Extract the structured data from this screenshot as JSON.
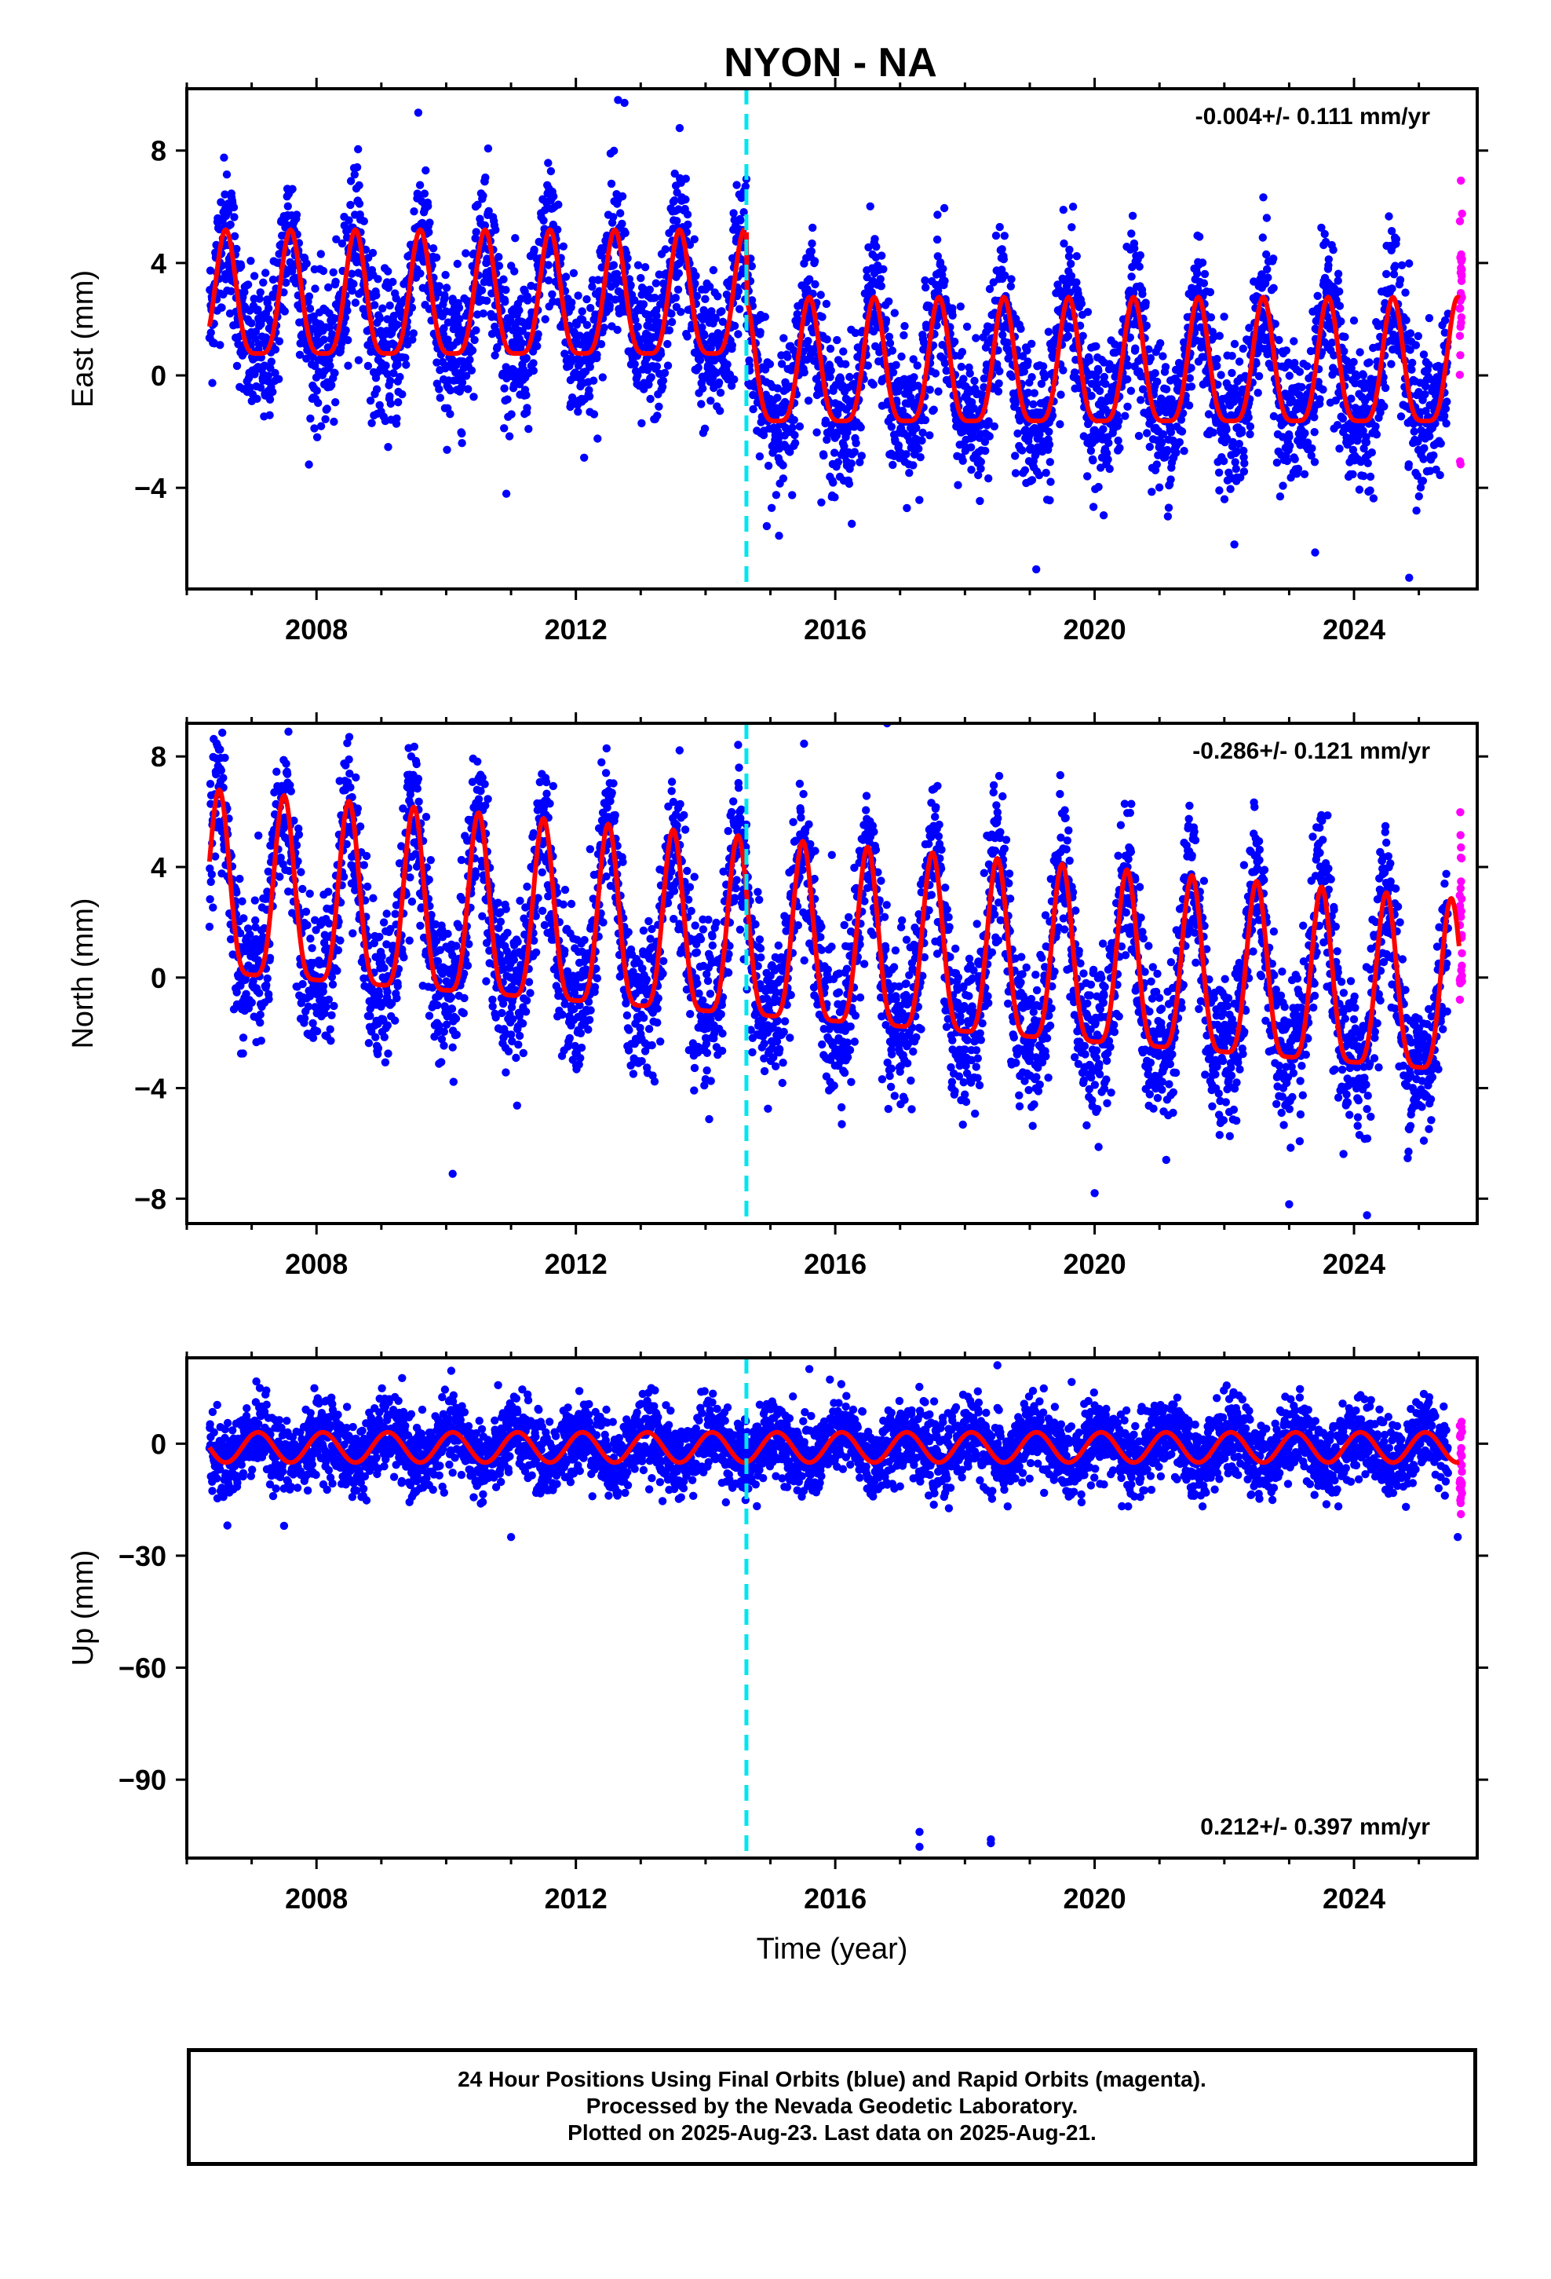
{
  "title": "NYON - NA",
  "colors": {
    "final_orbits": "#0000ff",
    "rapid_orbits": "#ff00ff",
    "model_fit": "#ff0000",
    "offset_line": "#00e5ee",
    "frame": "#000000"
  },
  "chart_data": [
    {
      "type": "scatter",
      "component": "east",
      "ylabel": "East (mm)",
      "xlim": [
        2006.0,
        2025.9
      ],
      "ylim": [
        -7.6,
        10.2
      ],
      "yticks": [
        -4,
        0,
        4,
        8
      ],
      "xticks": [
        2008,
        2012,
        2016,
        2020,
        2024
      ],
      "xtick_labels": [
        "2008",
        "2012",
        "2016",
        "2020",
        "2024"
      ],
      "offset_year": 2014.63,
      "rate_label": "-0.004+/- 0.111 mm/yr",
      "rate_position": "top-right",
      "model": {
        "base_before": 2.1,
        "amp_before": 2.2,
        "base_after": -0.3,
        "amp_after": 2.2,
        "phase_peak": 0.6
      },
      "series": [
        {
          "name": "Final Orbits",
          "color": "#0000ff",
          "x_range": [
            2006.35,
            2025.45
          ],
          "noise": 1.3
        },
        {
          "name": "Rapid Orbits",
          "color": "#ff00ff",
          "x_range": [
            2025.45,
            2025.64
          ],
          "noise": 1.8
        }
      ],
      "outliers": [
        {
          "x": 2012.65,
          "y": 9.8
        },
        {
          "x": 2012.75,
          "y": 9.7
        },
        {
          "x": 2013.6,
          "y": 8.8
        },
        {
          "x": 2023.4,
          "y": -6.3
        },
        {
          "x": 2024.85,
          "y": -7.2
        },
        {
          "x": 2019.1,
          "y": -6.9
        }
      ]
    },
    {
      "type": "scatter",
      "component": "north",
      "ylabel": "North (mm)",
      "xlim": [
        2006.0,
        2025.9
      ],
      "ylim": [
        -8.9,
        9.2
      ],
      "yticks": [
        -8,
        -4,
        0,
        4,
        8
      ],
      "xticks": [
        2008,
        2012,
        2016,
        2020,
        2024
      ],
      "xtick_labels": [
        "2008",
        "2012",
        "2016",
        "2020",
        "2024"
      ],
      "offset_year": 2014.63,
      "rate_label": "-0.286+/- 0.121 mm/yr",
      "rate_position": "top-right",
      "model": {
        "start": 2.5,
        "end": -1.2,
        "amp_start": 3.3,
        "amp_end": 3.1,
        "phase_peak": 0.5
      },
      "series": [
        {
          "name": "Final Orbits",
          "color": "#0000ff",
          "x_range": [
            2006.35,
            2025.45
          ],
          "noise": 1.4
        },
        {
          "name": "Rapid Orbits",
          "color": "#ff00ff",
          "x_range": [
            2025.45,
            2025.64
          ],
          "noise": 1.6
        }
      ],
      "outliers": [
        {
          "x": 2010.1,
          "y": -7.1
        },
        {
          "x": 2016.8,
          "y": 9.2
        },
        {
          "x": 2023.0,
          "y": -8.2
        },
        {
          "x": 2024.2,
          "y": -8.6
        },
        {
          "x": 2020.0,
          "y": -7.8
        }
      ]
    },
    {
      "type": "scatter",
      "component": "up",
      "ylabel": "Up (mm)",
      "xlim": [
        2006.0,
        2025.9
      ],
      "ylim": [
        -111,
        23
      ],
      "yticks": [
        -90,
        -60,
        -30,
        0
      ],
      "xticks": [
        2008,
        2012,
        2016,
        2020,
        2024
      ],
      "xtick_labels": [
        "2008",
        "2012",
        "2016",
        "2020",
        "2024"
      ],
      "xlabel": "Time (year)",
      "offset_year": 2014.63,
      "rate_label": "0.212+/- 0.397 mm/yr",
      "rate_position": "bottom-right",
      "model": {
        "base": -1.0,
        "amp": 4.5,
        "phase_peak": 0.1
      },
      "series": [
        {
          "name": "Final Orbits",
          "color": "#0000ff",
          "x_range": [
            2006.35,
            2025.45
          ],
          "noise": 5.0
        },
        {
          "name": "Rapid Orbits",
          "color": "#ff00ff",
          "x_range": [
            2025.45,
            2025.64
          ],
          "noise": 8.0
        }
      ],
      "outliers": [
        {
          "x": 2017.3,
          "y": -104
        },
        {
          "x": 2017.3,
          "y": -108
        },
        {
          "x": 2018.4,
          "y": -106
        },
        {
          "x": 2018.4,
          "y": -107
        },
        {
          "x": 2011.0,
          "y": -25
        },
        {
          "x": 2007.5,
          "y": -22
        },
        {
          "x": 2025.6,
          "y": -25
        },
        {
          "x": 2018.5,
          "y": 21
        },
        {
          "x": 2015.6,
          "y": 20
        }
      ]
    }
  ],
  "footer": {
    "line1": "24 Hour Positions Using Final Orbits (blue) and Rapid Orbits (magenta).",
    "line2": "Processed by the Nevada Geodetic Laboratory.",
    "line3": "Plotted on 2025-Aug-23. Last data on 2025-Aug-21."
  }
}
